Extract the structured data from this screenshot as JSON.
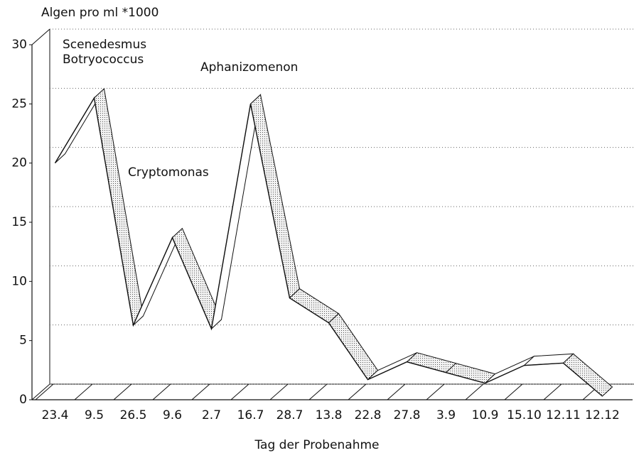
{
  "chart_data": {
    "type": "line",
    "y_axis_label": "Algen pro ml *1000",
    "x_axis_label": "Tag der Probenahme",
    "annotations": [
      "Scenedesmus",
      "Botryococcus",
      "Aphanizomenon",
      "Cryptomonas"
    ],
    "categories": [
      "23.4",
      "9.5",
      "26.5",
      "9.6",
      "2.7",
      "16.7",
      "28.7",
      "13.8",
      "22.8",
      "27.8",
      "3.9",
      "10.9",
      "15.10",
      "12.11",
      "12.12"
    ],
    "values": [
      20,
      25.5,
      6.3,
      13.7,
      6,
      25,
      8.6,
      6.5,
      1.7,
      3.2,
      2.3,
      1.4,
      2.9,
      3.1,
      0.3
    ],
    "color": "#111111",
    "ylim": [
      0,
      30
    ],
    "yticks": [
      0,
      5,
      10,
      15,
      20,
      25,
      30
    ],
    "grid": true
  }
}
